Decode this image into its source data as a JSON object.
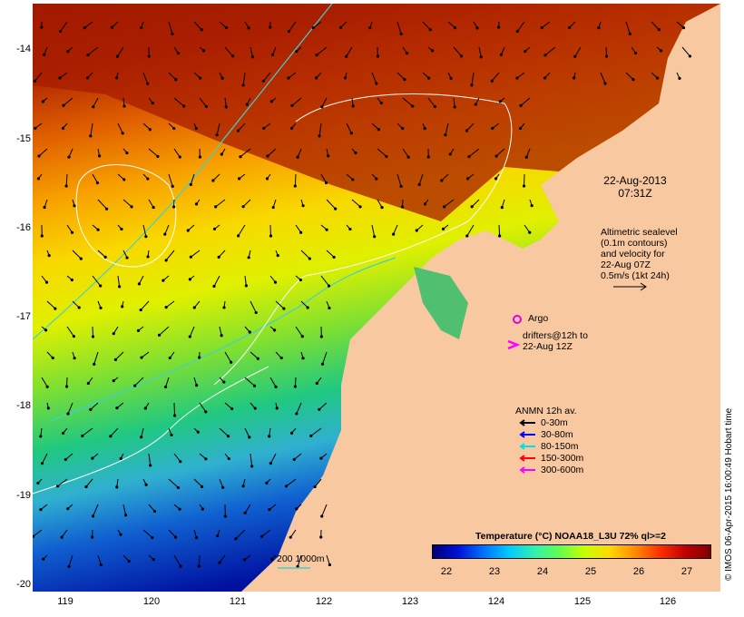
{
  "axes": {
    "lat_ticks": [
      "-14",
      "-15",
      "-16",
      "-17",
      "-18",
      "-19",
      "-20"
    ],
    "lon_ticks": [
      "119",
      "120",
      "121",
      "122",
      "123",
      "124",
      "125",
      "126"
    ]
  },
  "annotations": {
    "date_line1": "22-Aug-2013",
    "date_line2": "07:31Z",
    "altimetry_note": "Altimetric sealevel\n(0.1m contours)\nand velocity for\n22-Aug 07Z\n0.5m/s (1kt 24h)",
    "argo_label": "Argo",
    "drifters_label": "drifters@12h to\n22-Aug 12Z",
    "scale_label": "200  1000m"
  },
  "legend": {
    "title": "ANMN 12h av.",
    "items": [
      {
        "label": "0-30m",
        "color": "#000000"
      },
      {
        "label": "30-80m",
        "color": "#0000ff"
      },
      {
        "label": "80-150m",
        "color": "#00e0e0"
      },
      {
        "label": "150-300m",
        "color": "#ff0000"
      },
      {
        "label": "300-600m",
        "color": "#ff00ff"
      }
    ]
  },
  "colorbar": {
    "title": "Temperature (°C) NOAA18_L3U 72% ql>=2",
    "ticks": [
      "22",
      "23",
      "24",
      "25",
      "26",
      "27"
    ]
  },
  "footer": {
    "credit": "© IMOS 06-Apr-2015 16:00:49 Hobart time"
  },
  "colors": {
    "land": "#f8c8a0",
    "warm": "#a01800",
    "cool": "#0020c0",
    "isobath": "#40d0d0",
    "contour": "#ffffff",
    "argo": "#e000e0"
  }
}
